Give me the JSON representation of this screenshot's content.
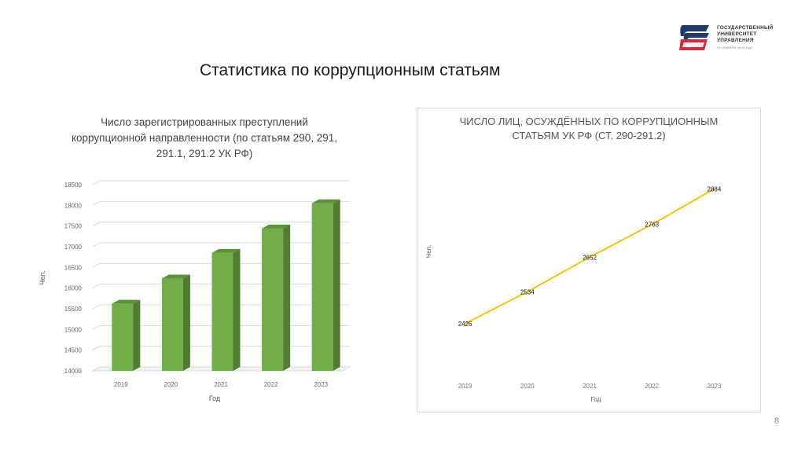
{
  "slide_title": "Статистика по коррупционным статьям",
  "logo": {
    "lines": [
      "ГОСУДАРСТВЕННЫЙ",
      "УНИВЕРСИТЕТ",
      "УПРАВЛЕНИЯ"
    ],
    "sub": "ОСНОВАН В 1919 ГОДУ",
    "colors": [
      "#1f3a6e",
      "#d62b3a"
    ]
  },
  "page_number": "8",
  "chart_data": [
    {
      "type": "bar",
      "title": "Число зарегистрированных преступлений коррупционной направленности (по статьям 290, 291, 291.1, 291.2 УК РФ)",
      "title_lines": [
        "Число зарегистрированных преступлений",
        "коррупционной направленности (по статьям 290, 291,",
        "291.1, 291.2 УК РФ)"
      ],
      "categories": [
        "2019",
        "2020",
        "2021",
        "2022",
        "2023"
      ],
      "values": [
        15620,
        16230,
        16850,
        17440,
        18050
      ],
      "xlabel": "Год",
      "ylabel": "Чел.",
      "ylim": [
        14000,
        18500
      ],
      "yticks": [
        "14000",
        "14500",
        "15000",
        "15500",
        "16000",
        "16500",
        "17000",
        "17500",
        "18000",
        "18500"
      ],
      "grid": true,
      "bar_color": "#70ad47"
    },
    {
      "type": "line",
      "title": "ЧИСЛО ЛИЦ, ОСУЖДЁННЫХ ПО КОРРУПЦИОННЫМ СТАТЬЯМ УК РФ (СТ. 290-291.2)",
      "title_lines": [
        "ЧИСЛО ЛИЦ, ОСУЖДЁННЫХ ПО КОРРУПЦИОННЫМ",
        "СТАТЬЯМ УК РФ (СТ. 290-291.2)"
      ],
      "categories": [
        "2019",
        "2020",
        "2021",
        "2022",
        "2023"
      ],
      "values": [
        2426,
        2534,
        2652,
        2763,
        2884
      ],
      "data_labels": [
        "2426",
        "2534",
        "2652",
        "2763",
        "2884"
      ],
      "xlabel": "Год",
      "ylabel": "Чел.",
      "ylim": [
        2300,
        3000
      ],
      "grid": false,
      "line_color": "#ffc000"
    }
  ]
}
